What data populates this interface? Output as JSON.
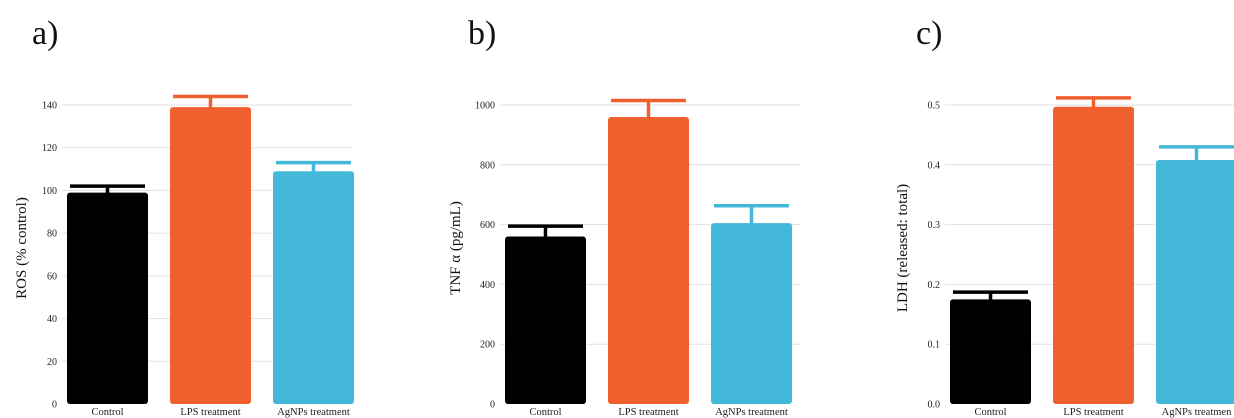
{
  "chart_data": [
    {
      "type": "bar",
      "panel": "a)",
      "ylabel": "ROS (% control)",
      "categories": [
        "Control",
        "LPS treatment",
        "AgNPs treatment"
      ],
      "values": [
        99,
        139,
        109
      ],
      "errors": [
        3,
        5,
        4
      ],
      "colors": [
        "#000000",
        "#F05F2E",
        "#44B8D8"
      ],
      "ylim": [
        0,
        140
      ],
      "yticks": [
        "0",
        "20",
        "40",
        "60",
        "80",
        "100",
        "120",
        "140"
      ],
      "grid": true
    },
    {
      "type": "bar",
      "panel": "b)",
      "ylabel": "TNF α (pg/mL)",
      "categories": [
        "Control",
        "LPS treatment",
        "AgNPs treatment"
      ],
      "values": [
        560,
        960,
        605
      ],
      "errors": [
        35,
        55,
        58
      ],
      "colors": [
        "#000000",
        "#F05F2E",
        "#44B8D8"
      ],
      "ylim": [
        0,
        1000
      ],
      "yticks": [
        "0",
        "200",
        "400",
        "600",
        "800",
        "1000"
      ],
      "grid": true
    },
    {
      "type": "bar",
      "panel": "c)",
      "ylabel": "LDH (released: total)",
      "categories": [
        "Control",
        "LPS treatment",
        "AgNPs treatmen"
      ],
      "values": [
        0.175,
        0.497,
        0.408
      ],
      "errors": [
        0.012,
        0.015,
        0.022
      ],
      "colors": [
        "#000000",
        "#F05F2E",
        "#44B8D8"
      ],
      "ylim": [
        0,
        0.5
      ],
      "yticks": [
        "0.0",
        "0.1",
        "0.2",
        "0.3",
        "0.4",
        "0.5"
      ],
      "grid": true
    }
  ]
}
